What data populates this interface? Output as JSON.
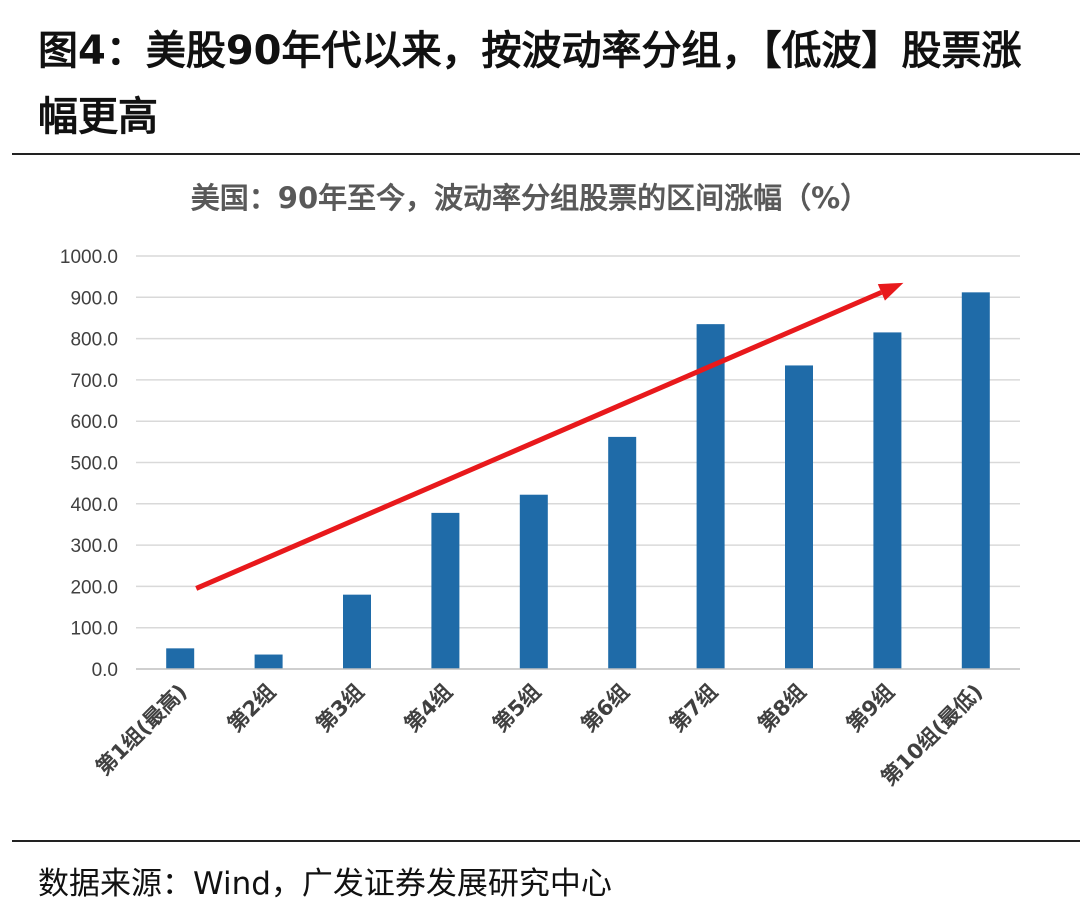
{
  "figure": {
    "title": "图4：美股90年代以来，按波动率分组，【低波】股票涨幅更高",
    "source": "数据来源：Wind，广发证券发展研究中心"
  },
  "colors": {
    "bar": "#1f6ba8",
    "trend_arrow": "#e8191c"
  },
  "chart_data": {
    "type": "bar",
    "title": "美国：90年至今，波动率分组股票的区间涨幅（%）",
    "xlabel": "",
    "ylabel": "",
    "categories": [
      "第1组(最高)",
      "第2组",
      "第3组",
      "第4组",
      "第5组",
      "第6组",
      "第7组",
      "第8组",
      "第9组",
      "第10组(最低)"
    ],
    "values": [
      50,
      35,
      180,
      378,
      422,
      562,
      835,
      735,
      815,
      912
    ],
    "ylim": [
      0,
      1000
    ],
    "yticks": [
      "0.0",
      "100.0",
      "200.0",
      "300.0",
      "400.0",
      "500.0",
      "600.0",
      "700.0",
      "800.0",
      "900.0",
      "1000.0"
    ],
    "grid": true,
    "legend": "none",
    "annotation": {
      "type": "trend-arrow",
      "from": {
        "category": "第1组(最高)",
        "value": 195
      },
      "to": {
        "category": "第9组",
        "value": 935
      }
    }
  }
}
